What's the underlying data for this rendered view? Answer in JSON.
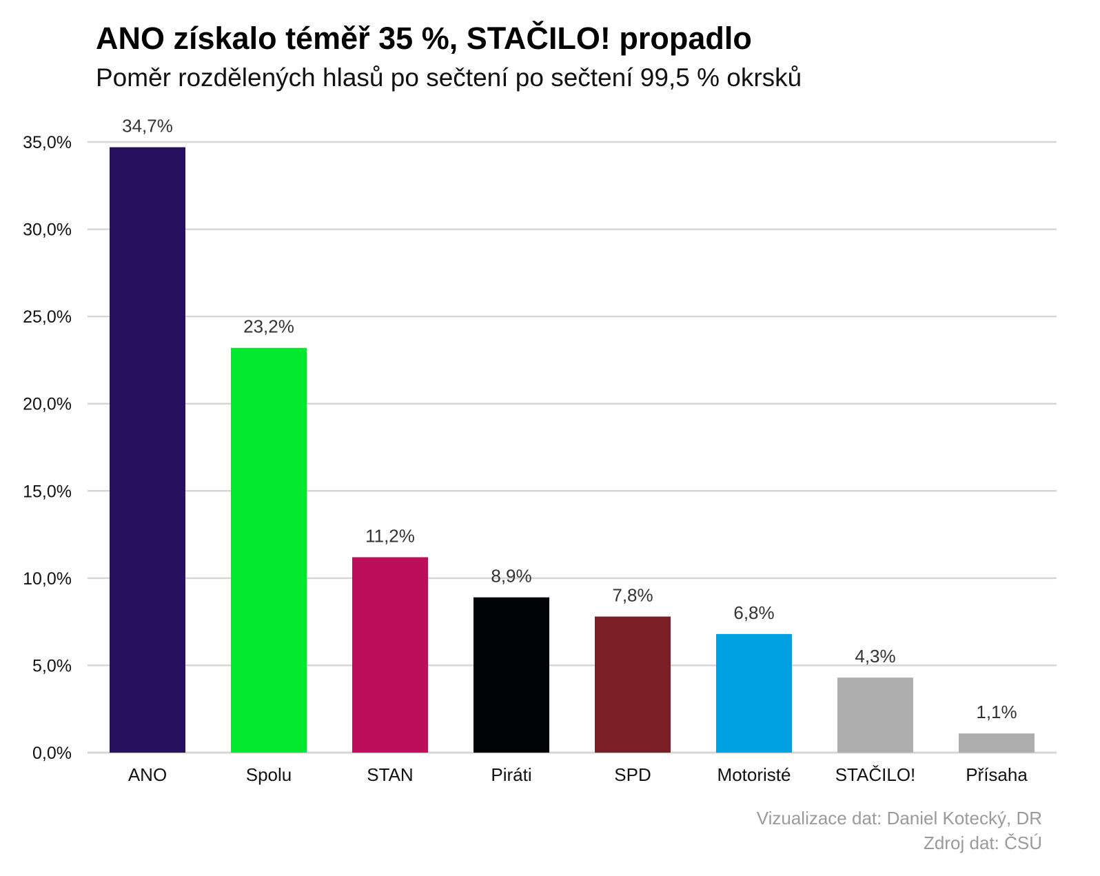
{
  "header": {
    "title": "ANO získalo téměř 35 %, STAČILO! propadlo",
    "subtitle": "Poměr rozdělených hlasů po sečtení po sečtení 99,5 % okrsků"
  },
  "footer": {
    "credit": "Vizualizace dat: Daniel Kotecký, DR",
    "source": "Zdroj dat: ČSÚ"
  },
  "chart_data": {
    "type": "bar",
    "title": "ANO získalo téměř 35 %, STAČILO! propadlo",
    "subtitle": "Poměr rozdělených hlasů po sečtení po sečtení 99,5 % okrsků",
    "xlabel": "",
    "ylabel": "",
    "categories": [
      "ANO",
      "Spolu",
      "STAN",
      "Piráti",
      "SPD",
      "Motoristé",
      "STAČILO!",
      "Přísaha"
    ],
    "values": [
      34.7,
      23.2,
      11.2,
      8.9,
      7.8,
      6.8,
      4.3,
      1.1
    ],
    "value_labels": [
      "34,7%",
      "23,2%",
      "11,2%",
      "8,9%",
      "7,8%",
      "6,8%",
      "4,3%",
      "1,1%"
    ],
    "colors": [
      "#27105e",
      "#03e82e",
      "#bb0f5a",
      "#020306",
      "#7a1f26",
      "#00a0e3",
      "#adadad",
      "#adadad"
    ],
    "ylim": [
      0,
      35
    ],
    "yticks": [
      0,
      5,
      10,
      15,
      20,
      25,
      30,
      35
    ],
    "ytick_labels": [
      "0,0%",
      "5,0%",
      "10,0%",
      "15,0%",
      "20,0%",
      "25,0%",
      "30,0%",
      "35,0%"
    ],
    "grid": true,
    "legend": "none",
    "gridline_color": "#d6d6d6"
  }
}
